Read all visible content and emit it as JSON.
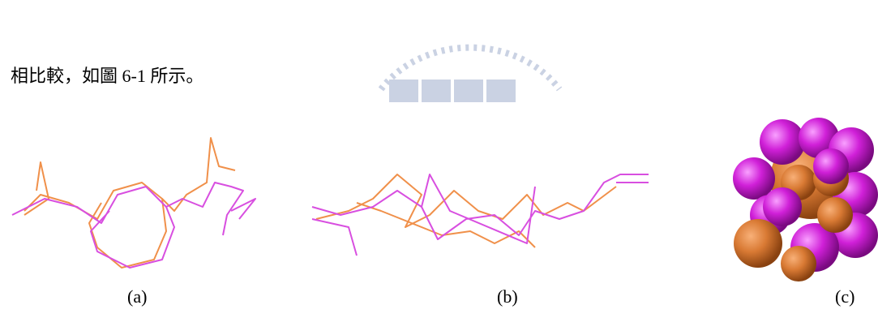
{
  "body_text": "相比較，如圖 6-1 所示。",
  "figure": {
    "captions": [
      "(a)",
      "(b)",
      "(c)"
    ]
  }
}
